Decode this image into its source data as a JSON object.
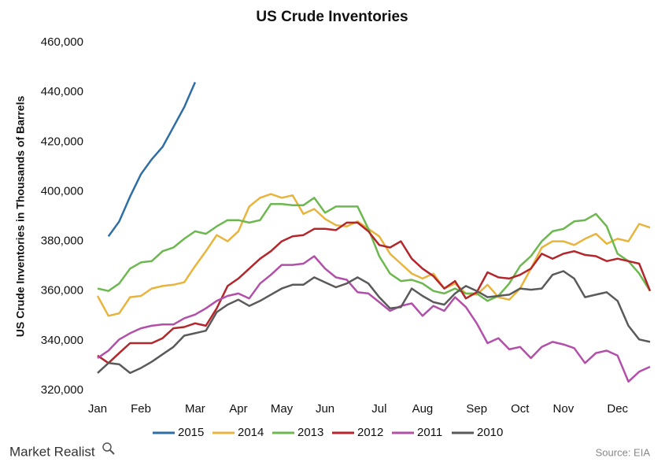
{
  "chart_data": {
    "type": "line",
    "title": "US Crude Inventories",
    "y_label": "US Crude Inventories in Thousands of Barrels",
    "source": "Source: EIA",
    "brand": "Market Realist",
    "categories": [
      "Jan",
      null,
      null,
      null,
      "Feb",
      null,
      null,
      null,
      null,
      "Mar",
      null,
      null,
      null,
      "Apr",
      null,
      null,
      null,
      "May",
      null,
      null,
      null,
      "Jun",
      null,
      null,
      null,
      null,
      "Jul",
      null,
      null,
      null,
      "Aug",
      null,
      null,
      null,
      null,
      "Sep",
      null,
      null,
      null,
      "Oct",
      null,
      null,
      null,
      "Nov",
      null,
      null,
      null,
      null,
      "Dec",
      null,
      null,
      null
    ],
    "ylim": [
      320000,
      460000
    ],
    "yticks": [
      {
        "value": 320000,
        "label": "320,000"
      },
      {
        "value": 340000,
        "label": "340,000"
      },
      {
        "value": 360000,
        "label": "360,000"
      },
      {
        "value": 380000,
        "label": "380,000"
      },
      {
        "value": 400000,
        "label": "400,000"
      },
      {
        "value": 420000,
        "label": "420,000"
      },
      {
        "value": 440000,
        "label": "440,000"
      },
      {
        "value": 460000,
        "label": "460,000"
      }
    ],
    "grid": false,
    "legend": "bottom",
    "series": [
      {
        "name": "2015",
        "color": "#2f6ea5",
        "values": [
          null,
          382000,
          388000,
          398000,
          407000,
          413000,
          418000,
          426000,
          434000,
          444000,
          null,
          null,
          null,
          null,
          null,
          null,
          null,
          null,
          null,
          null,
          null,
          null,
          null,
          null,
          null,
          null,
          null,
          null,
          null,
          null,
          null,
          null,
          null,
          null,
          null,
          null,
          null,
          null,
          null,
          null,
          null,
          null,
          null,
          null,
          null,
          null,
          null,
          null,
          null,
          null,
          null,
          null
        ]
      },
      {
        "name": "2014",
        "color": "#e8b43c",
        "values": [
          358000,
          350000,
          351000,
          357500,
          358000,
          361000,
          362000,
          362500,
          363500,
          370000,
          376000,
          382500,
          380000,
          384000,
          394000,
          397500,
          399000,
          397500,
          398500,
          391000,
          393000,
          389000,
          386500,
          386000,
          388000,
          385000,
          382000,
          375000,
          371000,
          367000,
          365000,
          367000,
          361000,
          363000,
          359000,
          358500,
          362500,
          357500,
          356500,
          361000,
          369000,
          377500,
          380000,
          380000,
          378500,
          381000,
          383000,
          379000,
          381000,
          380000,
          387000,
          385500
        ]
      },
      {
        "name": "2013",
        "color": "#6cb84f",
        "values": [
          361000,
          360000,
          363000,
          369000,
          371500,
          372000,
          376000,
          377500,
          381000,
          384000,
          383000,
          386000,
          388500,
          388500,
          387500,
          388500,
          395000,
          395000,
          394500,
          394500,
          397500,
          391500,
          394000,
          394000,
          394000,
          385000,
          374000,
          367000,
          364000,
          364500,
          363000,
          360000,
          359000,
          361000,
          359000,
          359000,
          356000,
          358000,
          363000,
          370000,
          374000,
          380000,
          384000,
          385000,
          388000,
          388500,
          391000,
          386000,
          375000,
          372000,
          367000,
          360000
        ]
      },
      {
        "name": "2012",
        "color": "#b3262b",
        "values": [
          334000,
          331000,
          335000,
          339000,
          339000,
          339000,
          341000,
          345000,
          345500,
          347000,
          346000,
          353000,
          362000,
          365000,
          369000,
          373000,
          376000,
          380000,
          382000,
          382500,
          385000,
          385000,
          384500,
          387500,
          387500,
          384000,
          378500,
          377500,
          380000,
          373000,
          369000,
          366000,
          361000,
          364000,
          357000,
          359500,
          367500,
          365500,
          365000,
          366500,
          369000,
          375000,
          373000,
          375000,
          376000,
          374500,
          374000,
          372000,
          373000,
          372000,
          371000,
          360000
        ]
      },
      {
        "name": "2011",
        "color": "#b24fa9",
        "values": [
          333000,
          336000,
          340500,
          343000,
          345000,
          346000,
          346500,
          346500,
          349000,
          350500,
          353000,
          356000,
          358000,
          359000,
          357000,
          363000,
          366500,
          370500,
          370500,
          371000,
          374000,
          369000,
          365500,
          364500,
          359500,
          359000,
          355500,
          352000,
          354000,
          355000,
          350000,
          354000,
          352000,
          357500,
          353500,
          347000,
          339000,
          341000,
          336500,
          337500,
          333000,
          337500,
          339500,
          338500,
          337000,
          331000,
          335000,
          336000,
          334000,
          323500,
          327500,
          329500
        ]
      },
      {
        "name": "2010",
        "color": "#5a5a5a",
        "values": [
          327000,
          331000,
          330500,
          327000,
          329000,
          331500,
          334500,
          337500,
          342000,
          343000,
          344000,
          351500,
          354500,
          356500,
          354000,
          356000,
          358500,
          361000,
          362500,
          362500,
          365500,
          363500,
          361500,
          363000,
          365500,
          363000,
          357500,
          353000,
          353500,
          361000,
          358000,
          355500,
          354500,
          359000,
          362000,
          360000,
          357500,
          358000,
          358500,
          361000,
          360500,
          361000,
          366500,
          368000,
          365000,
          357500,
          358500,
          359500,
          356000,
          346000,
          340500,
          339500
        ]
      }
    ]
  }
}
